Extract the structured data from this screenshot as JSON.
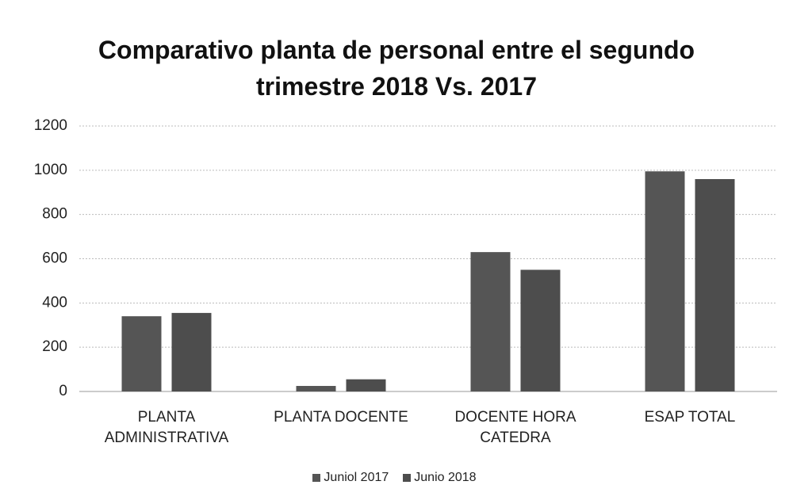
{
  "chart_data": {
    "type": "bar",
    "title": "Comparativo planta de personal entre el segundo trimestre 2018 Vs. 2017",
    "categories": [
      "PLANTA ADMINISTRATIVA",
      "PLANTA DOCENTE",
      "DOCENTE HORA CATEDRA",
      "ESAP TOTAL"
    ],
    "series": [
      {
        "name": "Juniol 2017",
        "color": "#555555",
        "values": [
          340,
          25,
          630,
          995
        ]
      },
      {
        "name": "Junio 2018",
        "color": "#4d4d4d",
        "values": [
          355,
          55,
          550,
          960
        ]
      }
    ],
    "ylim": [
      0,
      1200
    ],
    "yticks": [
      0,
      200,
      400,
      600,
      800,
      1000,
      1200
    ],
    "grid": true,
    "legend": "bottom"
  }
}
